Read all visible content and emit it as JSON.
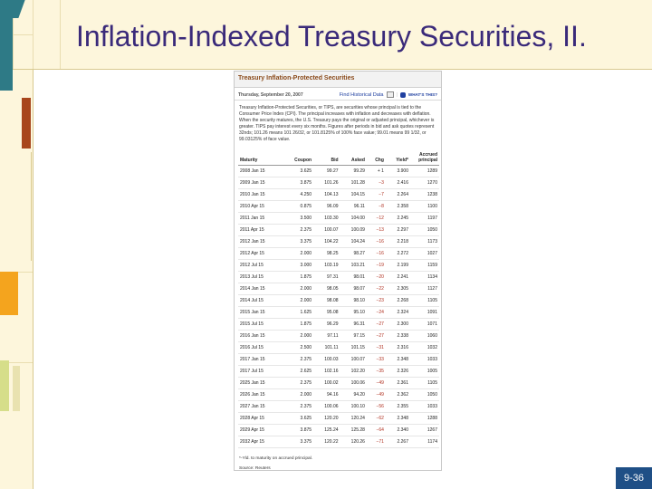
{
  "slide": {
    "title": "Inflation-Indexed Treasury Securities, II.",
    "page_number": "9-36"
  },
  "article": {
    "title": "Treasury Inflation-Protected Securities",
    "date": "Thursday, September 20, 2007",
    "find_link": "Find Historical Data",
    "whats_this": "WHAT'S THIS?",
    "intro": "Treasury Inflation-Protected Securities, or TIPS, are securities whose principal is tied to the Consumer Price Index (CPI). The principal increases with inflation and decreases with deflation. When the security matures, the U.S. Treasury pays the original or adjusted principal, whichever is greater. TIPS pay interest every six months. Figures after periods in bid and ask quotes represent 32nds; 101.26 means 101 26/32, or 101.8125% of 100% face value; 99.01 means 99 1/32, or 99.03125% of face value.",
    "columns": [
      "Maturity",
      "Coupon",
      "Bid",
      "Asked",
      "Chg",
      "Yield*",
      "Accrued principal"
    ],
    "rows": [
      [
        "2008 Jan 15",
        "3.625",
        "99.27",
        "99.29",
        "+ 1",
        "3.900",
        "1289"
      ],
      [
        "2009 Jan 15",
        "3.875",
        "101.26",
        "101.28",
        "−3",
        "2.416",
        "1270"
      ],
      [
        "2010 Jan 15",
        "4.250",
        "104.13",
        "104.15",
        "−7",
        "2.264",
        "1238"
      ],
      [
        "2010 Apr 15",
        "0.875",
        "96.09",
        "96.11",
        "−8",
        "2.358",
        "1100"
      ],
      [
        "2011 Jan 15",
        "3.500",
        "103.30",
        "104.00",
        "−12",
        "2.245",
        "1197"
      ],
      [
        "2011 Apr 15",
        "2.375",
        "100.07",
        "100.09",
        "−13",
        "2.297",
        "1050"
      ],
      [
        "2012 Jan 15",
        "3.375",
        "104.22",
        "104.24",
        "−16",
        "2.218",
        "1173"
      ],
      [
        "2012 Apr 15",
        "2.000",
        "98.25",
        "98.27",
        "−16",
        "2.272",
        "1027"
      ],
      [
        "2012 Jul 15",
        "3.000",
        "103.19",
        "103.21",
        "−19",
        "2.199",
        "1159"
      ],
      [
        "2013 Jul 15",
        "1.875",
        "97.31",
        "98.01",
        "−20",
        "2.241",
        "1134"
      ],
      [
        "2014 Jan 15",
        "2.000",
        "98.05",
        "98.07",
        "−22",
        "2.305",
        "1127"
      ],
      [
        "2014 Jul 15",
        "2.000",
        "98.08",
        "98.10",
        "−23",
        "2.268",
        "1105"
      ],
      [
        "2015 Jan 15",
        "1.625",
        "95.08",
        "95.10",
        "−24",
        "2.324",
        "1091"
      ],
      [
        "2015 Jul 15",
        "1.875",
        "96.29",
        "96.31",
        "−27",
        "2.300",
        "1071"
      ],
      [
        "2016 Jan 15",
        "2.000",
        "97.11",
        "97.15",
        "−27",
        "2.338",
        "1060"
      ],
      [
        "2016 Jul 15",
        "2.500",
        "101.11",
        "101.15",
        "−31",
        "2.316",
        "1032"
      ],
      [
        "2017 Jan 15",
        "2.375",
        "100.03",
        "100.07",
        "−33",
        "2.348",
        "1033"
      ],
      [
        "2017 Jul 15",
        "2.625",
        "102.16",
        "102.20",
        "−35",
        "2.326",
        "1005"
      ],
      [
        "2025 Jan 15",
        "2.375",
        "100.02",
        "100.06",
        "−49",
        "2.361",
        "1105"
      ],
      [
        "2026 Jan 15",
        "2.000",
        "94.16",
        "94.20",
        "−49",
        "2.362",
        "1050"
      ],
      [
        "2027 Jan 15",
        "2.375",
        "100.06",
        "100.10",
        "−56",
        "2.355",
        "1033"
      ],
      [
        "2028 Apr 15",
        "3.625",
        "120.20",
        "120.24",
        "−62",
        "2.348",
        "1288"
      ],
      [
        "2029 Apr 15",
        "3.875",
        "125.24",
        "125.28",
        "−64",
        "2.340",
        "1267"
      ],
      [
        "2032 Apr 15",
        "3.375",
        "120.22",
        "120.26",
        "−71",
        "2.267",
        "1174"
      ]
    ],
    "footnote": "*-Yld. to maturity on accrued principal.",
    "source": "Source: Reuters"
  },
  "colors": {
    "title": "#3a2a7a",
    "frame": "#fdf6dc",
    "teal": "#2e7a86",
    "page_badge": "#1f4f86",
    "negative_change": "#b03020"
  }
}
